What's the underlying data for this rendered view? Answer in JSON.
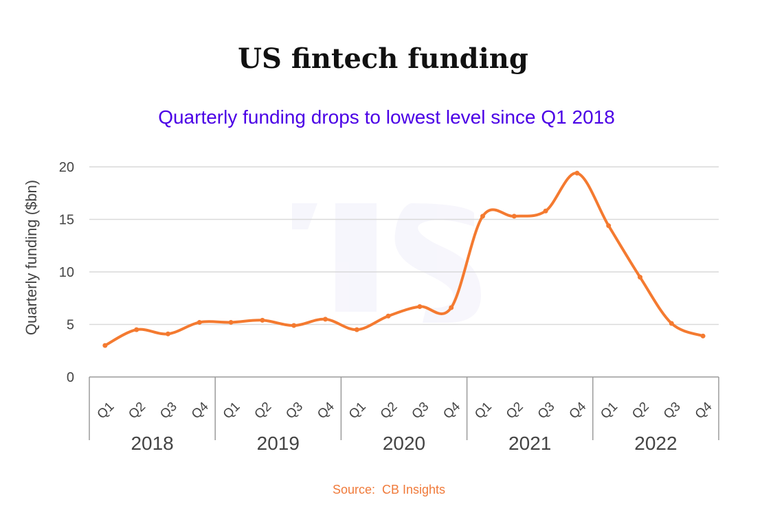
{
  "chart_data": {
    "type": "line",
    "title": "US fintech funding",
    "subtitle": "Quarterly funding drops to lowest level since Q1 2018",
    "ylabel": "Quarterly funding ($bn)",
    "xlabel": "",
    "ylim": [
      0,
      20
    ],
    "yticks": [
      "0",
      "5",
      "10",
      "15",
      "20"
    ],
    "grid": true,
    "years": [
      "2018",
      "2019",
      "2020",
      "2021",
      "2022"
    ],
    "quarters": [
      "Q1",
      "Q2",
      "Q3",
      "Q4"
    ],
    "categories": [
      "Q1 2018",
      "Q2 2018",
      "Q3 2018",
      "Q4 2018",
      "Q1 2019",
      "Q2 2019",
      "Q3 2019",
      "Q4 2019",
      "Q1 2020",
      "Q2 2020",
      "Q3 2020",
      "Q4 2020",
      "Q1 2021",
      "Q2 2021",
      "Q3 2021",
      "Q4 2021",
      "Q1 2022",
      "Q2 2022",
      "Q3 2022",
      "Q4 2022"
    ],
    "values": [
      3.0,
      4.5,
      4.1,
      5.2,
      5.2,
      5.4,
      4.9,
      5.5,
      4.5,
      5.8,
      6.7,
      6.6,
      15.3,
      15.3,
      15.8,
      19.4,
      14.4,
      9.5,
      5.1,
      3.9
    ],
    "line_color": "#f47a30"
  },
  "source_text": "Source:  CB Insights",
  "watermark_icon": "ts-logo-icon"
}
